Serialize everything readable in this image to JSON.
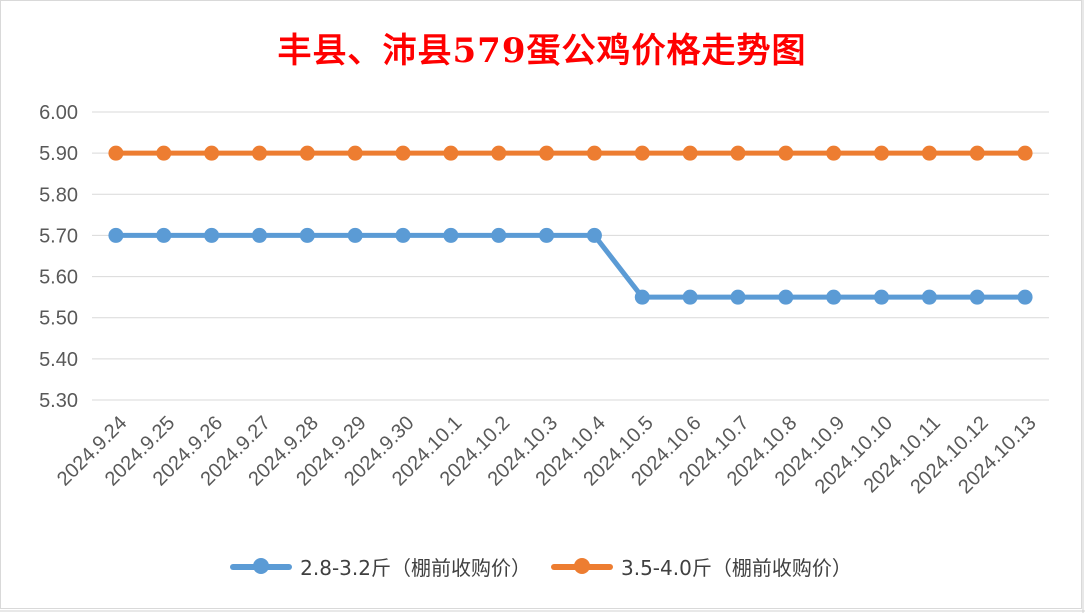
{
  "chart_data": {
    "type": "line",
    "title": "丰县、沛县579蛋公鸡价格走势图",
    "categories": [
      "2024.9.24",
      "2024.9.25",
      "2024.9.26",
      "2024.9.27",
      "2024.9.28",
      "2024.9.29",
      "2024.9.30",
      "2024.10.1",
      "2024.10.2",
      "2024.10.3",
      "2024.10.4",
      "2024.10.5",
      "2024.10.6",
      "2024.10.7",
      "2024.10.8",
      "2024.10.9",
      "2024.10.10",
      "2024.10.11",
      "2024.10.12",
      "2024.10.13"
    ],
    "ylim": [
      5.3,
      6.0
    ],
    "yticks": [
      "5.30",
      "5.40",
      "5.50",
      "5.60",
      "5.70",
      "5.80",
      "5.90",
      "6.00"
    ],
    "grid": true,
    "legend_position": "bottom",
    "series": [
      {
        "name": "2.8-3.2斤（棚前收购价）",
        "color": "#5b9bd5",
        "values": [
          5.7,
          5.7,
          5.7,
          5.7,
          5.7,
          5.7,
          5.7,
          5.7,
          5.7,
          5.7,
          5.7,
          5.55,
          5.55,
          5.55,
          5.55,
          5.55,
          5.55,
          5.55,
          5.55,
          5.55
        ]
      },
      {
        "name": "3.5-4.0斤（棚前收购价）",
        "color": "#ed7d31",
        "values": [
          5.9,
          5.9,
          5.9,
          5.9,
          5.9,
          5.9,
          5.9,
          5.9,
          5.9,
          5.9,
          5.9,
          5.9,
          5.9,
          5.9,
          5.9,
          5.9,
          5.9,
          5.9,
          5.9,
          5.9
        ]
      }
    ]
  }
}
